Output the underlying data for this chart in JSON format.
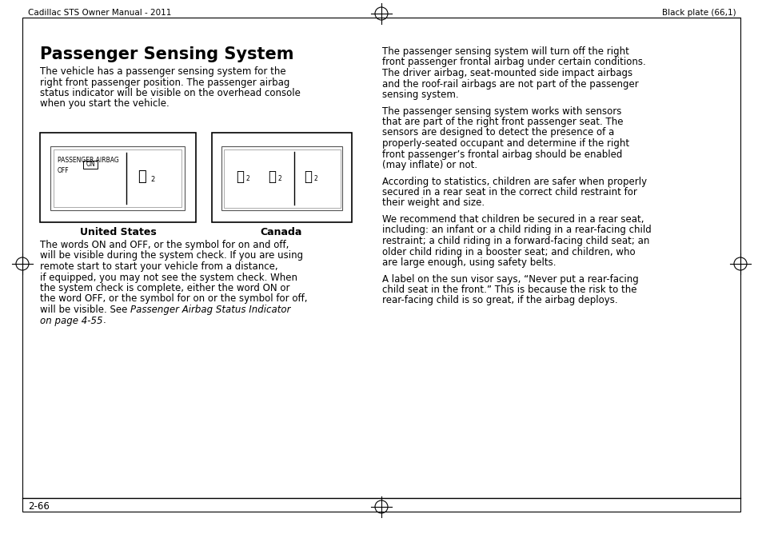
{
  "bg_color": "#ffffff",
  "header_left": "Cadillac STS Owner Manual - 2011",
  "header_right": "Black plate (66,1)",
  "footer_page": "2-66",
  "title": "Passenger Sensing System",
  "body_left_top": [
    "The vehicle has a passenger sensing system for the",
    "right front passenger position. The passenger airbag",
    "status indicator will be visible on the overhead console",
    "when you start the vehicle."
  ],
  "label_us": "United States",
  "label_ca": "Canada",
  "body_left_bottom": [
    "The words ON and OFF, or the symbol for on and off,",
    "will be visible during the system check. If you are using",
    "remote start to start your vehicle from a distance,",
    "if equipped, you may not see the system check. When",
    "the system check is complete, either the word ON or",
    "the word OFF, or the symbol for on or the symbol for off,",
    "will be visible. See |Passenger Airbag Status Indicator|",
    "|on page 4-55|."
  ],
  "right_paragraphs": [
    [
      "The passenger sensing system will turn off the right",
      "front passenger frontal airbag under certain conditions.",
      "The driver airbag, seat-mounted side impact airbags",
      "and the roof-rail airbags are not part of the passenger",
      "sensing system."
    ],
    [
      "The passenger sensing system works with sensors",
      "that are part of the right front passenger seat. The",
      "sensors are designed to detect the presence of a",
      "properly-seated occupant and determine if the right",
      "front passenger’s frontal airbag should be enabled",
      "(may inflate) or not."
    ],
    [
      "According to statistics, children are safer when properly",
      "secured in a rear seat in the correct child restraint for",
      "their weight and size."
    ],
    [
      "We recommend that children be secured in a rear seat,",
      "including: an infant or a child riding in a rear-facing child",
      "restraint; a child riding in a forward-facing child seat; an",
      "older child riding in a booster seat; and children, who",
      "are large enough, using safety belts."
    ],
    [
      "A label on the sun visor says, “Never put a rear-facing",
      "child seat in the front.” This is because the risk to the",
      "rear-facing child is so great, if the airbag deploys."
    ]
  ],
  "font_size_body": 8.5,
  "font_size_title": 15,
  "font_size_header": 7.5,
  "font_size_label": 9,
  "font_size_diagram": 5.5,
  "col_split": 460
}
